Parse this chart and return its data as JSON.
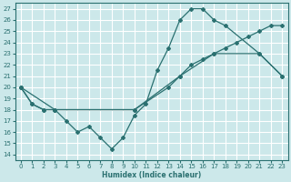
{
  "xlabel": "Humidex (Indice chaleur)",
  "bg_color": "#cce8ea",
  "grid_color": "#ffffff",
  "line_color": "#2a7070",
  "xlim": [
    -0.5,
    23.5
  ],
  "ylim": [
    13.5,
    27.5
  ],
  "xticks": [
    0,
    1,
    2,
    3,
    4,
    5,
    6,
    7,
    8,
    9,
    10,
    11,
    12,
    13,
    14,
    15,
    16,
    17,
    18,
    19,
    20,
    21,
    22,
    23
  ],
  "yticks": [
    14,
    15,
    16,
    17,
    18,
    19,
    20,
    21,
    22,
    23,
    24,
    25,
    26,
    27
  ],
  "line1_x": [
    0,
    1,
    2,
    3,
    4,
    5,
    6,
    7,
    8,
    9,
    10,
    11,
    12,
    13,
    14,
    15,
    16,
    17,
    18,
    21,
    23
  ],
  "line1_y": [
    20.0,
    18.5,
    18.0,
    18.0,
    17.0,
    16.0,
    16.5,
    15.5,
    14.5,
    15.5,
    17.5,
    18.5,
    21.5,
    23.5,
    26.0,
    27.0,
    27.0,
    26.0,
    25.5,
    23.0,
    21.0
  ],
  "line2_x": [
    0,
    1,
    2,
    3,
    10,
    13,
    14,
    15,
    16,
    17,
    18,
    19,
    20,
    21,
    22,
    23
  ],
  "line2_y": [
    20.0,
    18.5,
    18.0,
    18.0,
    18.0,
    20.0,
    21.0,
    22.0,
    22.5,
    23.0,
    23.5,
    24.0,
    24.5,
    25.0,
    25.5,
    25.5
  ],
  "line3_x": [
    0,
    3,
    10,
    14,
    17,
    21,
    23
  ],
  "line3_y": [
    20.0,
    18.0,
    18.0,
    21.0,
    23.0,
    23.0,
    21.0
  ]
}
